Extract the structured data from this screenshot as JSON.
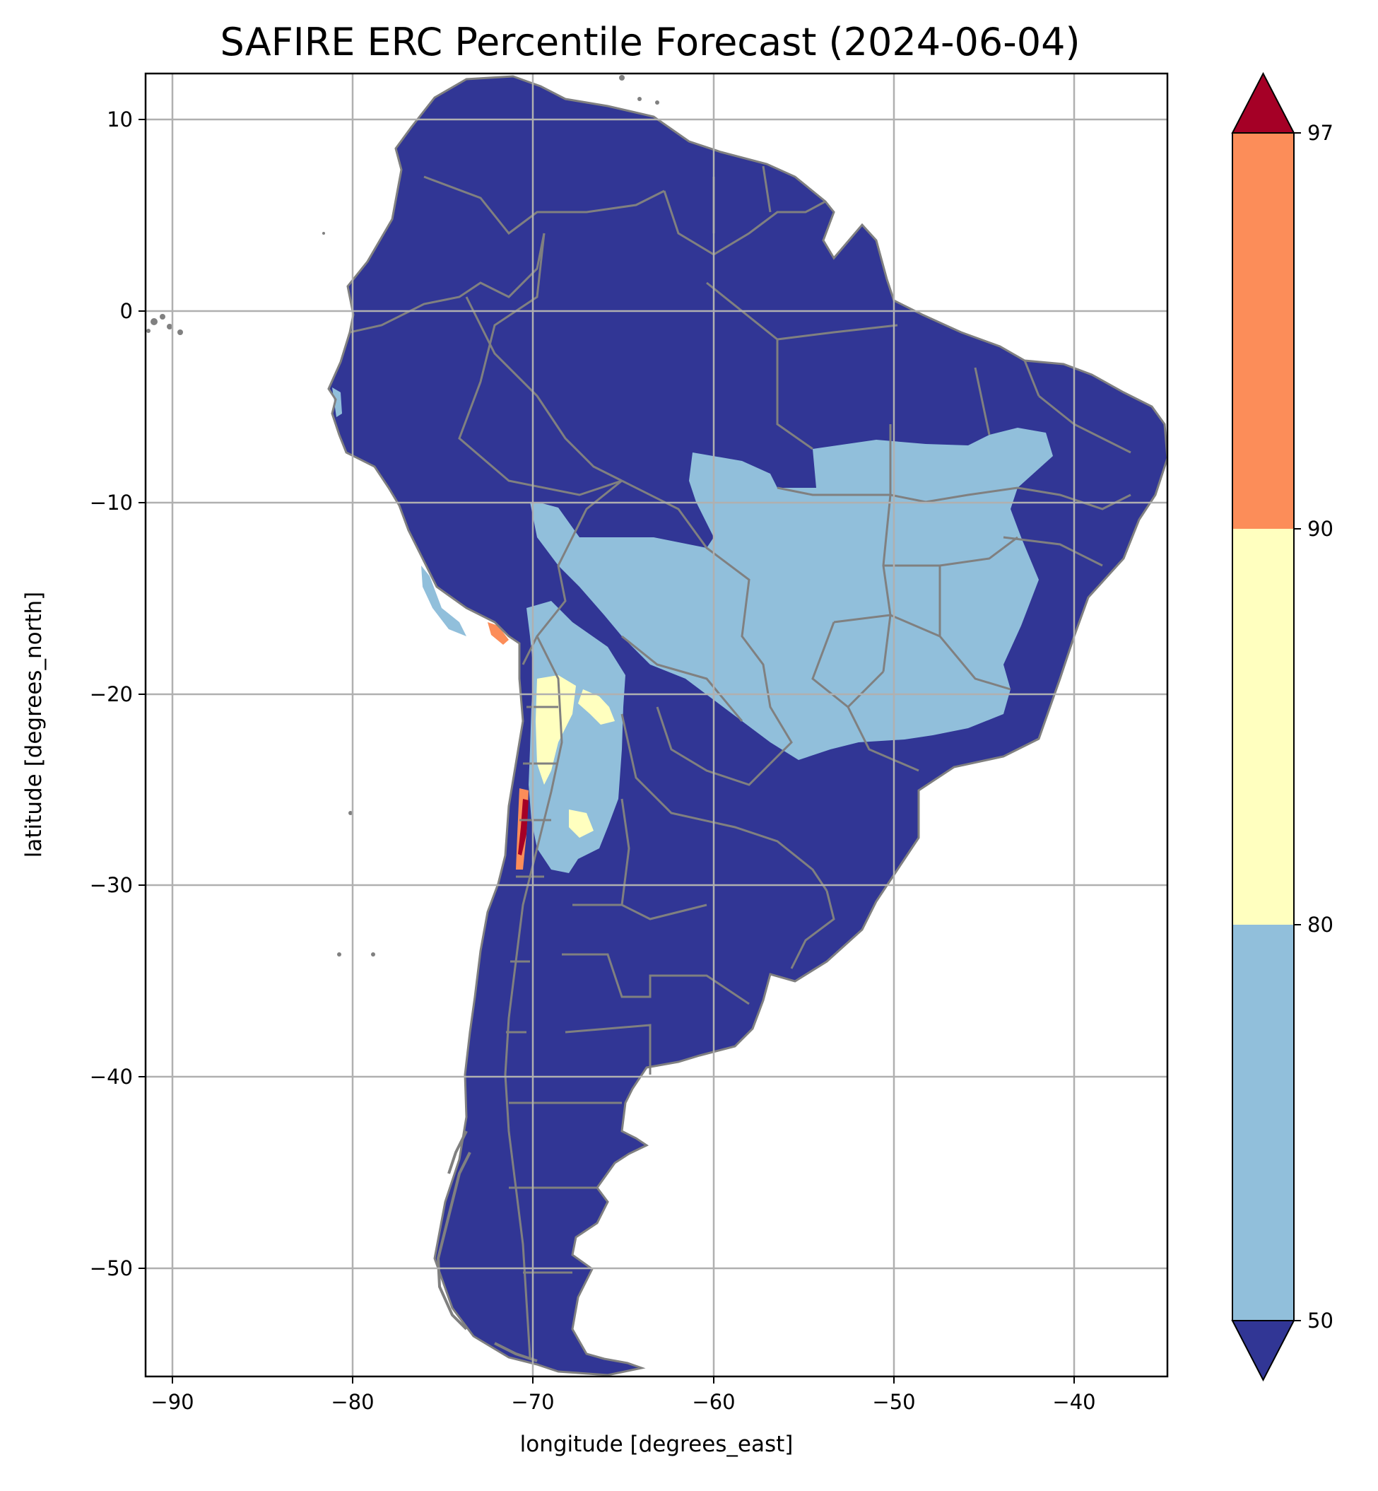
{
  "title": "SAFIRE ERC Percentile Forecast (2024-06-04)",
  "xlabel": "longitude [degrees_east]",
  "ylabel": "latitude [degrees_north]",
  "map": {
    "xlim": [
      -91.6,
      -35.2
    ],
    "ylim": [
      -55.8,
      12.3
    ],
    "xticks": [
      -90,
      -80,
      -70,
      -60,
      -50,
      -40
    ],
    "yticks": [
      10,
      0,
      -10,
      -20,
      -30,
      -40,
      -50
    ],
    "xtick_labels": [
      "−90",
      "−80",
      "−70",
      "−60",
      "−50",
      "−40"
    ],
    "ytick_labels": [
      "10",
      "0",
      "−10",
      "−20",
      "−30",
      "−40",
      "−50"
    ],
    "grid": true,
    "grid_color": "#b0b0b0",
    "border_color": "#808080",
    "colors": {
      "below_50": "#313695",
      "50_80": "#91bfdb",
      "80_90": "#ffffbf",
      "90_97": "#fc8d59",
      "above_97": "#a50026"
    }
  },
  "colorbar": {
    "boundaries": [
      50,
      80,
      90,
      97
    ],
    "tick_labels": [
      "50",
      "80",
      "90",
      "97"
    ],
    "extend": "both",
    "segment_colors": [
      "#91bfdb",
      "#ffffbf",
      "#fc8d59"
    ],
    "under_color": "#313695",
    "over_color": "#a50026"
  }
}
